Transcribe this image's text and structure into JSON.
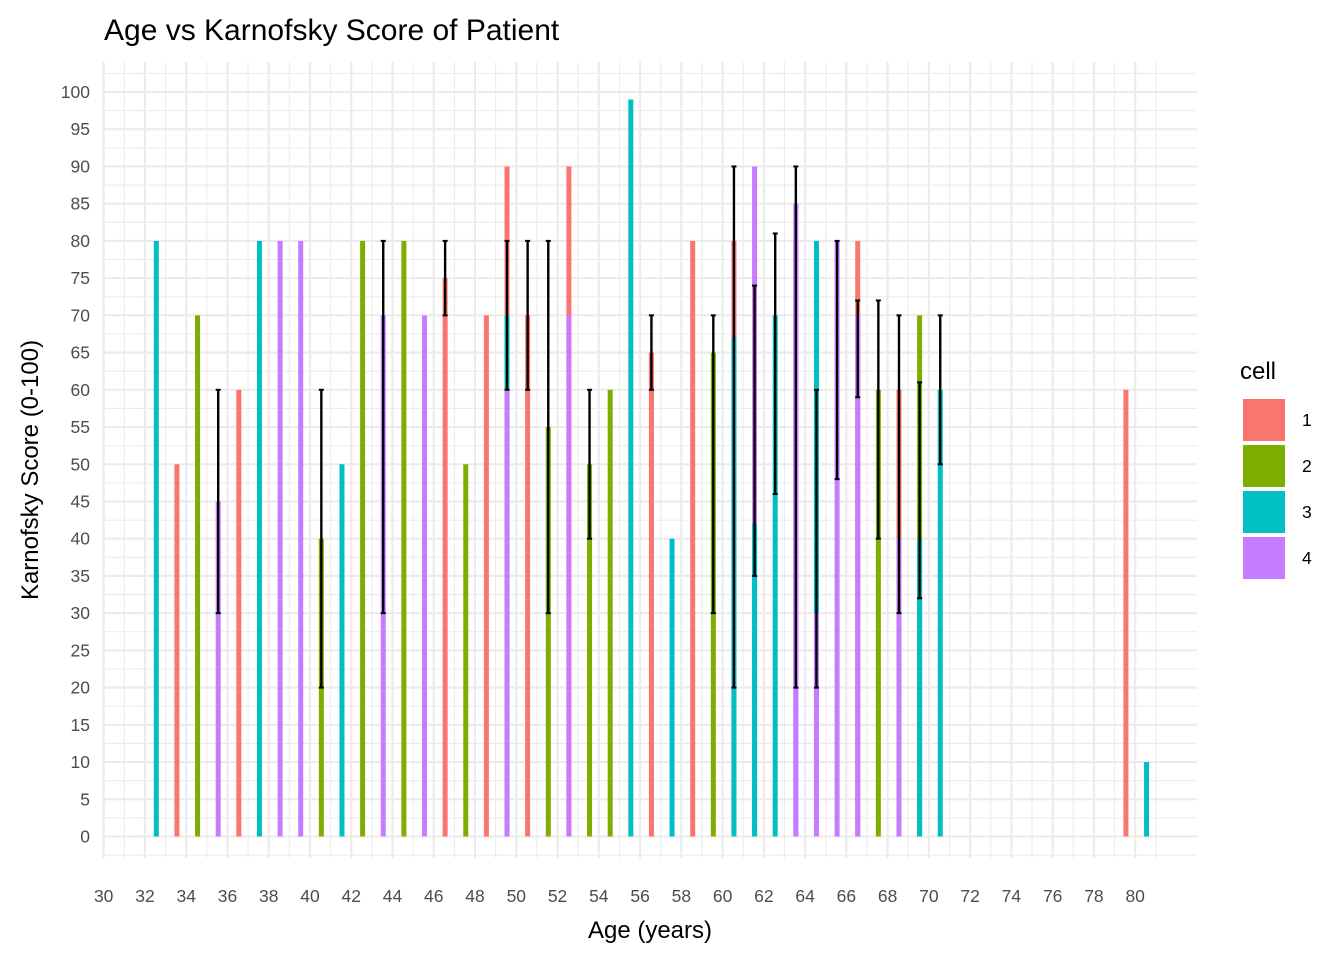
{
  "chart_data": {
    "type": "bar",
    "title": "Age vs Karnofsky Score of Patient",
    "xlabel": "Age (years)",
    "ylabel": "Karnofsky Score (0-100)",
    "xlim": [
      30,
      81
    ],
    "ylim": [
      0,
      100
    ],
    "x_ticks": [
      "30",
      "32",
      "34",
      "36",
      "38",
      "40",
      "42",
      "44",
      "46",
      "48",
      "50",
      "52",
      "54",
      "56",
      "58",
      "60",
      "62",
      "64",
      "66",
      "68",
      "70",
      "72",
      "74",
      "76",
      "78",
      "80"
    ],
    "y_ticks": [
      "0",
      "5",
      "10",
      "15",
      "20",
      "25",
      "30",
      "35",
      "40",
      "45",
      "50",
      "55",
      "60",
      "65",
      "70",
      "75",
      "80",
      "85",
      "90",
      "95",
      "100"
    ],
    "grid": true,
    "legend": {
      "title": "cell",
      "position": "right",
      "entries": [
        {
          "label": "1",
          "color": "#F8766D"
        },
        {
          "label": "2",
          "color": "#7CAE00"
        },
        {
          "label": "3",
          "color": "#00BFC4"
        },
        {
          "label": "4",
          "color": "#C77CFF"
        }
      ]
    },
    "bars": [
      {
        "age": 32,
        "cell": "3",
        "value": 80
      },
      {
        "age": 33,
        "cell": "1",
        "value": 50
      },
      {
        "age": 34,
        "cell": "2",
        "value": 70
      },
      {
        "age": 35,
        "cell": "4",
        "value": 45,
        "err": [
          30,
          60
        ]
      },
      {
        "age": 36,
        "cell": "1",
        "value": 60
      },
      {
        "age": 37,
        "cell": "3",
        "value": 80
      },
      {
        "age": 38,
        "cell": "4",
        "value": 80
      },
      {
        "age": 39,
        "cell": "4",
        "value": 80
      },
      {
        "age": 40,
        "cell": "2",
        "value": 40,
        "err": [
          20,
          60
        ]
      },
      {
        "age": 41,
        "cell": "3",
        "value": 50
      },
      {
        "age": 42,
        "cell": "2",
        "value": 80
      },
      {
        "age": 43,
        "cell": "4",
        "value": 70,
        "err": [
          30,
          80
        ]
      },
      {
        "age": 44,
        "cell": "2",
        "value": 80
      },
      {
        "age": 45,
        "cell": "4",
        "value": 70
      },
      {
        "age": 46,
        "cell": "1",
        "value": 75,
        "err": [
          70,
          80
        ]
      },
      {
        "age": 47,
        "cell": "2",
        "value": 50
      },
      {
        "age": 48,
        "cell": "1",
        "value": 70
      },
      {
        "age": 49,
        "cell": "1",
        "value": 90,
        "err": [
          60,
          80
        ]
      },
      {
        "age": 50,
        "cell": "1",
        "value": 70,
        "err": [
          60,
          80
        ]
      },
      {
        "age": 51,
        "cell": "2",
        "value": 55,
        "err": [
          30,
          80
        ]
      },
      {
        "age": 52,
        "cell": "1",
        "value": 90
      },
      {
        "age": 53,
        "cell": "2",
        "value": 50,
        "err": [
          40,
          60
        ]
      },
      {
        "age": 54,
        "cell": "2",
        "value": 60
      },
      {
        "age": 55,
        "cell": "3",
        "value": 99
      },
      {
        "age": 56,
        "cell": "1",
        "value": 65,
        "err": [
          60,
          70
        ]
      },
      {
        "age": 57,
        "cell": "3",
        "value": 40
      },
      {
        "age": 58,
        "cell": "1",
        "value": 80
      },
      {
        "age": 59,
        "cell": "2",
        "value": 65,
        "err": [
          30,
          70
        ]
      },
      {
        "age": 60,
        "cell": "1",
        "value": 80,
        "err": [
          20,
          90
        ]
      },
      {
        "age": 61,
        "cell": "4",
        "value": 90,
        "err": [
          35,
          74
        ]
      },
      {
        "age": 62,
        "cell": "3",
        "value": 70,
        "err": [
          46,
          81
        ]
      },
      {
        "age": 63,
        "cell": "4",
        "value": 85,
        "err": [
          20,
          90
        ]
      },
      {
        "age": 64,
        "cell": "3",
        "value": 80,
        "err": [
          20,
          60
        ]
      },
      {
        "age": 65,
        "cell": "4",
        "value": 80,
        "err": [
          48,
          80
        ]
      },
      {
        "age": 66,
        "cell": "1",
        "value": 80,
        "err": [
          59,
          72
        ]
      },
      {
        "age": 67,
        "cell": "2",
        "value": 60,
        "err": [
          40,
          72
        ]
      },
      {
        "age": 68,
        "cell": "1",
        "value": 60,
        "err": [
          30,
          70
        ]
      },
      {
        "age": 69,
        "cell": "2",
        "value": 70,
        "err": [
          32,
          61
        ]
      },
      {
        "age": 70,
        "cell": "3",
        "value": 60,
        "err": [
          50,
          70
        ]
      },
      {
        "age": 79,
        "cell": "1",
        "value": 60
      },
      {
        "age": 80,
        "cell": "3",
        "value": 10
      }
    ],
    "overlays": [
      {
        "age": 49,
        "cell": "3",
        "value": 70
      },
      {
        "age": 49,
        "cell": "4",
        "value": 60
      },
      {
        "age": 52,
        "cell": "4",
        "value": 70
      },
      {
        "age": 60,
        "cell": "3",
        "value": 67
      },
      {
        "age": 61,
        "cell": "3",
        "value": 42
      },
      {
        "age": 63,
        "cell": "4",
        "value": 80
      },
      {
        "age": 64,
        "cell": "4",
        "value": 30
      },
      {
        "age": 66,
        "cell": "4",
        "value": 70
      },
      {
        "age": 68,
        "cell": "4",
        "value": 40
      },
      {
        "age": 69,
        "cell": "3",
        "value": 40
      }
    ]
  }
}
